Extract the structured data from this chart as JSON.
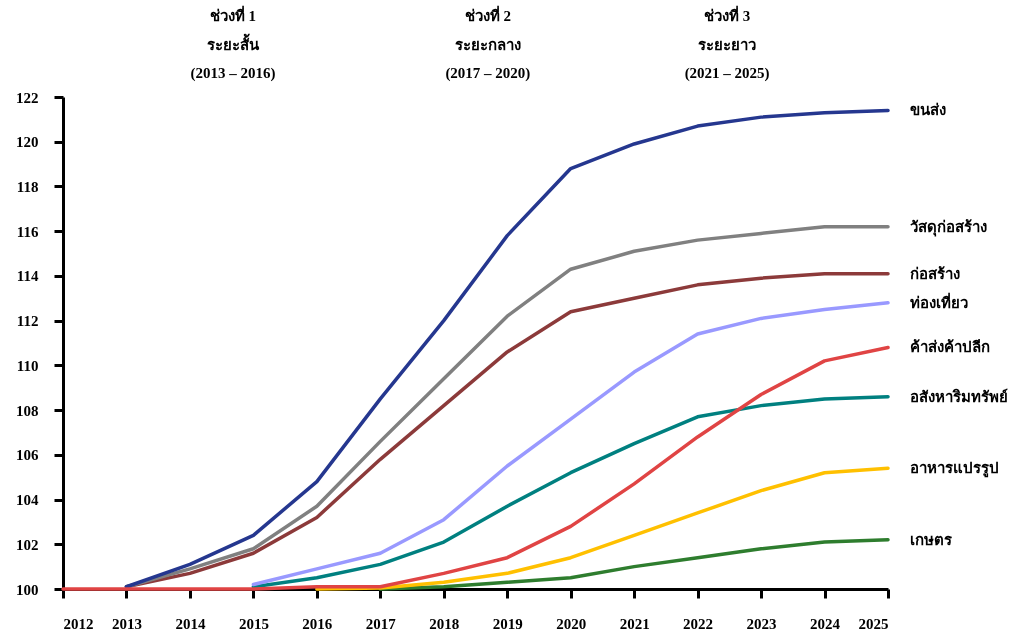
{
  "chart_data": {
    "type": "line",
    "annotations": [
      "ช่วงที่ 1\nระยะสั้น\n(2013 – 2016)",
      "ช่วงที่ 2\nระยะกลาง\n(2017 – 2020)",
      "ช่วงที่ 3\nระยะยาว\n(2021 – 2025)"
    ],
    "x": [
      2012,
      2013,
      2014,
      2015,
      2016,
      2017,
      2018,
      2019,
      2020,
      2021,
      2022,
      2023,
      2024,
      2025
    ],
    "xlim": [
      2012,
      2025
    ],
    "xticks": [
      2012,
      2013,
      2014,
      2015,
      2016,
      2017,
      2018,
      2019,
      2020,
      2021,
      2022,
      2023,
      2024,
      2025
    ],
    "ylim": [
      100,
      122
    ],
    "yticks": [
      100,
      102,
      104,
      106,
      108,
      110,
      112,
      114,
      116,
      118,
      120,
      122
    ],
    "series": [
      {
        "name": "เกษตร",
        "color": "#2e7d2e",
        "values": [
          null,
          null,
          null,
          null,
          null,
          100,
          100.1,
          100.3,
          100.5,
          101.0,
          101.4,
          101.8,
          102.1,
          102.2
        ]
      },
      {
        "name": "อาหารแปรรูป",
        "color": "#ffc000",
        "values": [
          null,
          null,
          null,
          null,
          100,
          100.05,
          100.3,
          100.7,
          101.4,
          102.4,
          103.4,
          104.4,
          105.2,
          105.4
        ]
      },
      {
        "name": "อสังหาริมทรัพย์",
        "color": "#008080",
        "values": [
          null,
          null,
          null,
          100.1,
          100.5,
          101.1,
          102.1,
          103.7,
          105.2,
          106.5,
          107.7,
          108.2,
          108.5,
          108.6
        ]
      },
      {
        "name": "ท่องเที่ยว",
        "color": "#9999ff",
        "values": [
          null,
          null,
          null,
          100.2,
          100.9,
          101.6,
          103.1,
          105.5,
          107.6,
          109.7,
          111.4,
          112.1,
          112.5,
          112.8
        ]
      },
      {
        "name": "ก่อสร้าง",
        "color": "#8c3a3a",
        "values": [
          null,
          100.1,
          100.7,
          101.6,
          103.2,
          105.8,
          108.2,
          110.6,
          112.4,
          113.0,
          113.6,
          113.9,
          114.1,
          114.1
        ]
      },
      {
        "name": "วัสดุก่อสร้าง",
        "color": "#808080",
        "values": [
          null,
          100.1,
          100.9,
          101.8,
          103.7,
          106.6,
          109.4,
          112.2,
          114.3,
          115.1,
          115.6,
          115.9,
          116.2,
          116.2
        ]
      },
      {
        "name": "ขนส่ง",
        "color": "#25378f",
        "values": [
          null,
          100.1,
          101.1,
          102.4,
          104.8,
          108.5,
          112.0,
          115.8,
          118.8,
          119.9,
          120.7,
          121.1,
          121.3,
          121.4
        ]
      },
      {
        "name": "ค้าส่งค้าปลีก",
        "color": "#e04444",
        "values": [
          100,
          100,
          100,
          100,
          100.1,
          100.1,
          100.7,
          101.4,
          102.8,
          104.7,
          106.8,
          108.7,
          110.2,
          110.8
        ]
      }
    ]
  }
}
